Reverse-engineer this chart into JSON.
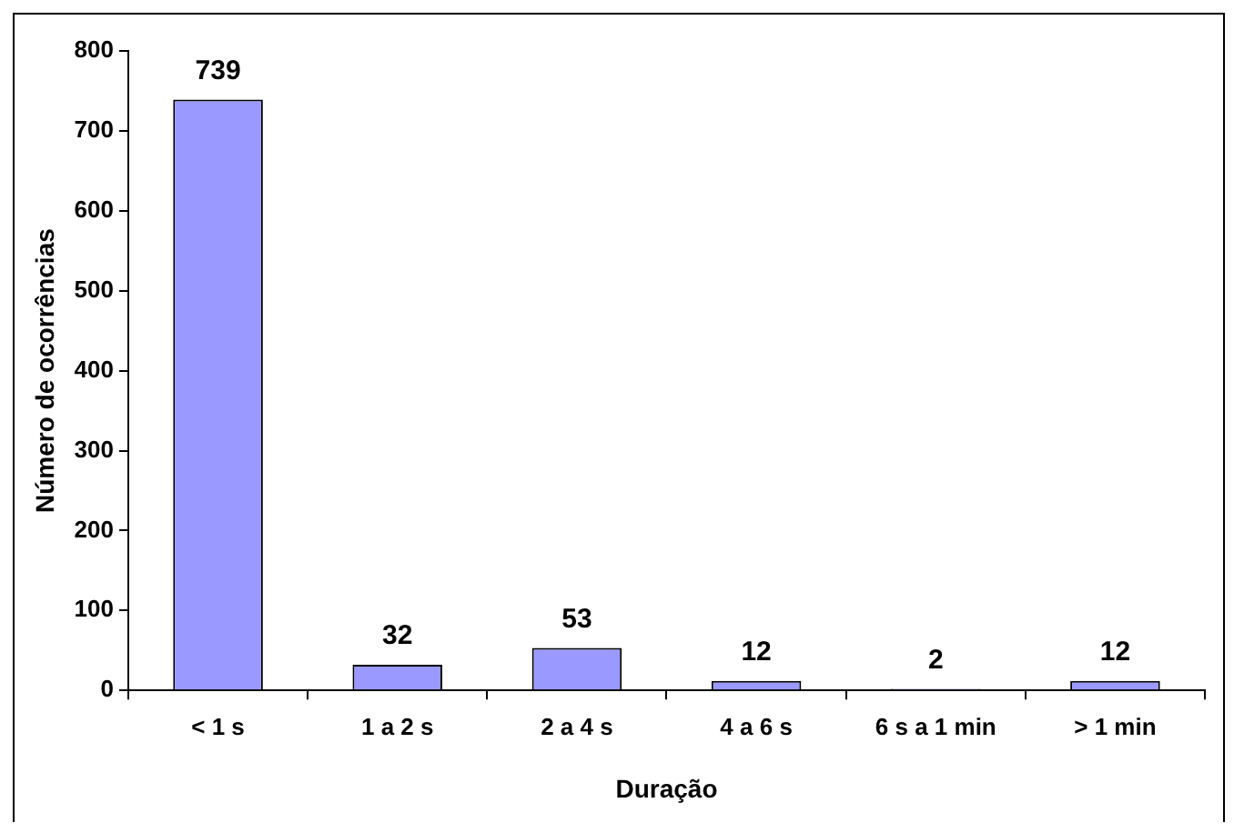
{
  "chart_data": {
    "type": "bar",
    "xlabel": "Duração",
    "ylabel": "Número de ocorrências",
    "categories": [
      "< 1 s",
      "1 a 2 s",
      "2 a 4 s",
      "4 a 6 s",
      "6 s a 1 min",
      "> 1 min"
    ],
    "values": [
      739,
      32,
      53,
      12,
      2,
      12
    ],
    "color": "#9999ff",
    "ylim": [
      0,
      800
    ],
    "yticks": [
      0,
      100,
      200,
      300,
      400,
      500,
      600,
      700,
      800
    ],
    "grid": false,
    "legend": false,
    "data_labels": true
  }
}
